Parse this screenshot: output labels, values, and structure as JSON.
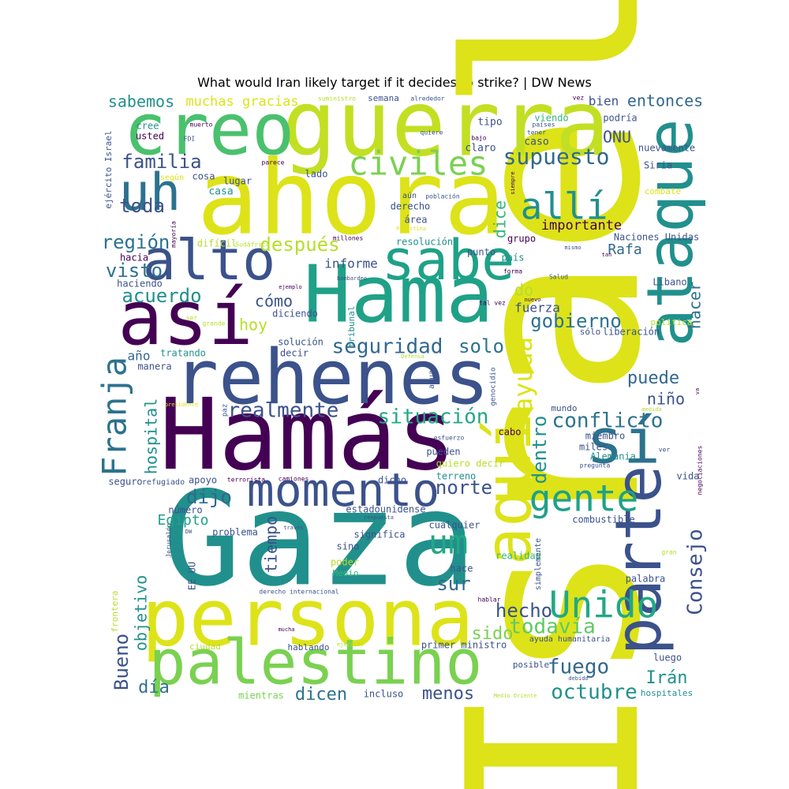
{
  "chart_data": {
    "type": "wordcloud",
    "title": "What would Iran likely target if it decides to strike? | DW News",
    "words": [
      {
        "text": "Israel",
        "weight": 100,
        "color": "#dde318",
        "vertical": true
      },
      {
        "text": "Gaza",
        "weight": 98,
        "color": "#21908d"
      },
      {
        "text": "Hamás",
        "weight": 80,
        "color": "#440154"
      },
      {
        "text": "ahora",
        "weight": 78,
        "color": "#dde318"
      },
      {
        "text": "guerra",
        "weight": 68,
        "color": "#c2df23"
      },
      {
        "text": "rehenes",
        "weight": 62,
        "color": "#3b528b"
      },
      {
        "text": "Hama",
        "weight": 60,
        "color": "#1fa188"
      },
      {
        "text": "persona",
        "weight": 58,
        "color": "#dde318"
      },
      {
        "text": "así",
        "weight": 55,
        "color": "#440154"
      },
      {
        "text": "creo",
        "weight": 52,
        "color": "#4ac16d"
      },
      {
        "text": "aquí",
        "weight": 50,
        "color": "#dde318",
        "vertical": true
      },
      {
        "text": "ataque",
        "weight": 50,
        "color": "#21908d",
        "vertical": true
      },
      {
        "text": "parte",
        "weight": 48,
        "color": "#3b528b",
        "vertical": true
      },
      {
        "text": "palestino",
        "weight": 46,
        "color": "#7ad151"
      },
      {
        "text": "sí",
        "weight": 45,
        "color": "#2c728e"
      },
      {
        "text": "alto",
        "weight": 44,
        "color": "#3b528b"
      },
      {
        "text": "sabe",
        "weight": 44,
        "color": "#1fa188"
      },
      {
        "text": "uh",
        "weight": 42,
        "color": "#2c728e"
      },
      {
        "text": "momento",
        "weight": 40,
        "color": "#3b528b"
      },
      {
        "text": "civiles",
        "weight": 34,
        "color": "#7ad151"
      },
      {
        "text": "gente",
        "weight": 32,
        "color": "#1fa188"
      },
      {
        "text": "Unido",
        "weight": 30,
        "color": "#22a884"
      },
      {
        "text": "allí",
        "weight": 30,
        "color": "#21908d"
      },
      {
        "text": "Franja",
        "weight": 28,
        "color": "#2c728e",
        "vertical": true
      },
      {
        "text": "um",
        "weight": 28,
        "color": "#22a884"
      },
      {
        "text": "supuesto",
        "weight": 22,
        "color": "#31688e"
      },
      {
        "text": "ayuda",
        "weight": 22,
        "color": "#dde318",
        "vertical": true
      },
      {
        "text": "seguridad",
        "weight": 20,
        "color": "#31688e"
      },
      {
        "text": "situación",
        "weight": 20,
        "color": "#22a884"
      },
      {
        "text": "conflicto",
        "weight": 20,
        "color": "#2c728e"
      },
      {
        "text": "realmente",
        "weight": 20,
        "color": "#3b528b"
      },
      {
        "text": "Consejo",
        "weight": 20,
        "color": "#3b528b",
        "vertical": true
      },
      {
        "text": "octubre",
        "weight": 20,
        "color": "#21908d"
      },
      {
        "text": "todavía",
        "weight": 20,
        "color": "#5ec962"
      },
      {
        "text": "fuego",
        "weight": 20,
        "color": "#31688e"
      },
      {
        "text": "hecho",
        "weight": 20,
        "color": "#3b528b"
      },
      {
        "text": "sur",
        "weight": 20,
        "color": "#31688e"
      },
      {
        "text": "norte",
        "weight": 20,
        "color": "#3b528b"
      },
      {
        "text": "dentro",
        "weight": 18,
        "color": "#21908d",
        "vertical": true
      },
      {
        "text": "familia",
        "weight": 18,
        "color": "#3b528b"
      },
      {
        "text": "toda",
        "weight": 18,
        "color": "#3b528b"
      },
      {
        "text": "región",
        "weight": 18,
        "color": "#2c728e"
      },
      {
        "text": "visto",
        "weight": 18,
        "color": "#2c728e"
      },
      {
        "text": "acuerdo",
        "weight": 18,
        "color": "#21908d"
      },
      {
        "text": "después",
        "weight": 18,
        "color": "#b5de2b"
      },
      {
        "text": "gobierno",
        "weight": 18,
        "color": "#2c728e"
      },
      {
        "text": "solo",
        "weight": 18,
        "color": "#2c728e"
      },
      {
        "text": "puede",
        "weight": 18,
        "color": "#31688e"
      },
      {
        "text": "dijo",
        "weight": 18,
        "color": "#31688e"
      },
      {
        "text": "Bueno",
        "weight": 18,
        "color": "#3b528b",
        "vertical": true
      },
      {
        "text": "día",
        "weight": 18,
        "color": "#2c728e"
      },
      {
        "text": "dicen",
        "weight": 16,
        "color": "#2c728e"
      },
      {
        "text": "menos",
        "weight": 16,
        "color": "#3b528b"
      },
      {
        "text": "Irán",
        "weight": 16,
        "color": "#21908d"
      },
      {
        "text": "sido",
        "weight": 16,
        "color": "#7ad151"
      },
      {
        "text": "hacer",
        "weight": 16,
        "color": "#2c728e",
        "vertical": true
      },
      {
        "text": "hospital",
        "weight": 16,
        "color": "#21908d",
        "vertical": true
      },
      {
        "text": "tiempo",
        "weight": 16,
        "color": "#3b528b",
        "vertical": true
      },
      {
        "text": "objetivo",
        "weight": 16,
        "color": "#21908d",
        "vertical": true
      },
      {
        "text": "ONU",
        "weight": 16,
        "color": "#3b528b"
      },
      {
        "text": "entonces",
        "weight": 16,
        "color": "#31688e"
      },
      {
        "text": "sabemos",
        "weight": 16,
        "color": "#21908d"
      },
      {
        "text": "muchas gracias",
        "weight": 14,
        "color": "#dde318"
      },
      {
        "text": "hoy",
        "weight": 16,
        "color": "#b5de2b"
      },
      {
        "text": "cómo",
        "weight": 16,
        "color": "#3b528b"
      },
      {
        "text": "importante",
        "weight": 14,
        "color": "#440154"
      },
      {
        "text": "dice",
        "weight": 16,
        "color": "#35b779",
        "vertical": true
      },
      {
        "text": "niño",
        "weight": 14,
        "color": "#3b528b"
      },
      {
        "text": "Rafa",
        "weight": 14,
        "color": "#31688e"
      },
      {
        "text": "do",
        "weight": 16,
        "color": "#b5de2b"
      },
      {
        "text": "fuerza",
        "weight": 13,
        "color": "#3b528b"
      },
      {
        "text": "informe",
        "weight": 13,
        "color": "#3b528b"
      },
      {
        "text": "Egipto",
        "weight": 14,
        "color": "#1fa188"
      },
      {
        "text": "año",
        "weight": 13,
        "color": "#31688e"
      },
      {
        "text": "bien",
        "weight": 13,
        "color": "#3b528b"
      },
      {
        "text": "tipo",
        "weight": 11,
        "color": "#3b528b"
      },
      {
        "text": "caso",
        "weight": 11,
        "color": "#3b528b"
      },
      {
        "text": "viendo",
        "weight": 10,
        "color": "#35b779"
      },
      {
        "text": "podría",
        "weight": 10,
        "color": "#3b528b"
      },
      {
        "text": "claro",
        "weight": 11,
        "color": "#3b528b"
      },
      {
        "text": "usted",
        "weight": 10,
        "color": "#440154"
      },
      {
        "text": "cree",
        "weight": 10,
        "color": "#21908d"
      },
      {
        "text": "casa",
        "weight": 11,
        "color": "#21908d"
      },
      {
        "text": "lugar",
        "weight": 10,
        "color": "#3b528b"
      },
      {
        "text": "cosa",
        "weight": 10,
        "color": "#3b528b"
      },
      {
        "text": "lado",
        "weight": 10,
        "color": "#3b528b"
      },
      {
        "text": "hacia",
        "weight": 10,
        "color": "#440154"
      },
      {
        "text": "difícil",
        "weight": 10,
        "color": "#b5de2b"
      },
      {
        "text": "haciendo",
        "weight": 10,
        "color": "#3b528b"
      },
      {
        "text": "diciendo",
        "weight": 10,
        "color": "#3b528b"
      },
      {
        "text": "solución",
        "weight": 10,
        "color": "#3b528b"
      },
      {
        "text": "decir",
        "weight": 10,
        "color": "#3b528b"
      },
      {
        "text": "tratando",
        "weight": 10,
        "color": "#21908d"
      },
      {
        "text": "manera",
        "weight": 10,
        "color": "#3b528b"
      },
      {
        "text": "resolución",
        "weight": 10,
        "color": "#21908d"
      },
      {
        "text": "punto",
        "weight": 10,
        "color": "#3b528b"
      },
      {
        "text": "grupo",
        "weight": 10,
        "color": "#440154"
      },
      {
        "text": "país",
        "weight": 10,
        "color": "#21908d"
      },
      {
        "text": "derecho",
        "weight": 10,
        "color": "#3b528b"
      },
      {
        "text": "área",
        "weight": 10,
        "color": "#3b528b"
      },
      {
        "text": "Naciones Unidas",
        "weight": 10,
        "color": "#3b528b"
      },
      {
        "text": "Siria",
        "weight": 10,
        "color": "#3b528b"
      },
      {
        "text": "nuevamente",
        "weight": 10,
        "color": "#3b528b"
      },
      {
        "text": "combate",
        "weight": 9,
        "color": "#dde318"
      },
      {
        "text": "Líbano",
        "weight": 10,
        "color": "#3b528b"
      },
      {
        "text": "política",
        "weight": 9,
        "color": "#b5de2b"
      },
      {
        "text": "liberación",
        "weight": 10,
        "color": "#3b528b"
      },
      {
        "text": "sólo",
        "weight": 9,
        "color": "#3b528b"
      },
      {
        "text": "mundo",
        "weight": 9,
        "color": "#3b528b"
      },
      {
        "text": "miembro",
        "weight": 10,
        "color": "#3b528b"
      },
      {
        "text": "miles",
        "weight": 10,
        "color": "#3b528b"
      },
      {
        "text": "Alemania",
        "weight": 10,
        "color": "#21908d"
      },
      {
        "text": "cabo",
        "weight": 10,
        "color": "#440154"
      },
      {
        "text": "pueden",
        "weight": 10,
        "color": "#3b528b"
      },
      {
        "text": "quiero decir",
        "weight": 10,
        "color": "#b5de2b"
      },
      {
        "text": "terreno",
        "weight": 10,
        "color": "#21908d"
      },
      {
        "text": "dicho",
        "weight": 10,
        "color": "#3b528b"
      },
      {
        "text": "estadounidense",
        "weight": 10,
        "color": "#3b528b"
      },
      {
        "text": "combustible",
        "weight": 10,
        "color": "#3b528b"
      },
      {
        "text": "cualquier",
        "weight": 10,
        "color": "#3b528b"
      },
      {
        "text": "significa",
        "weight": 10,
        "color": "#3b528b"
      },
      {
        "text": "sino",
        "weight": 10,
        "color": "#3b528b"
      },
      {
        "text": "poder",
        "weight": 10,
        "color": "#b5de2b"
      },
      {
        "text": "Medio",
        "weight": 9,
        "color": "#35b779"
      },
      {
        "text": "hace",
        "weight": 10,
        "color": "#3b528b"
      },
      {
        "text": "realidad",
        "weight": 10,
        "color": "#35b779"
      },
      {
        "text": "palabra",
        "weight": 10,
        "color": "#3b528b"
      },
      {
        "text": "vida",
        "weight": 10,
        "color": "#3b528b"
      },
      {
        "text": "luego",
        "weight": 10,
        "color": "#3b528b"
      },
      {
        "text": "hospitales",
        "weight": 9,
        "color": "#21908d"
      },
      {
        "text": "posible",
        "weight": 9,
        "color": "#3b528b"
      },
      {
        "text": "incluso",
        "weight": 10,
        "color": "#3b528b"
      },
      {
        "text": "mientras",
        "weight": 10,
        "color": "#7ad151"
      },
      {
        "text": "ciudad",
        "weight": 9,
        "color": "#b5de2b"
      },
      {
        "text": "hablando",
        "weight": 9,
        "color": "#3b528b"
      },
      {
        "text": "primer ministro",
        "weight": 10,
        "color": "#3b528b"
      },
      {
        "text": "ayuda humanitaria",
        "weight": 8,
        "color": "#3b528b"
      },
      {
        "text": "problema",
        "weight": 10,
        "color": "#3b528b"
      },
      {
        "text": "número",
        "weight": 10,
        "color": "#3b528b"
      },
      {
        "text": "seguro",
        "weight": 10,
        "color": "#3b528b"
      },
      {
        "text": "apoyo",
        "weight": 10,
        "color": "#3b528b"
      },
      {
        "text": "refugiado",
        "weight": 8,
        "color": "#3b528b"
      },
      {
        "text": "terrorista",
        "weight": 7,
        "color": "#440154"
      },
      {
        "text": "camiones",
        "weight": 7,
        "color": "#440154"
      },
      {
        "text": "ejército Israel",
        "weight": 9,
        "color": "#3b528b",
        "vertical": true
      },
      {
        "text": "mayoría",
        "weight": 7,
        "color": "#440154",
        "vertical": true
      },
      {
        "text": "tribunal",
        "weight": 9,
        "color": "#21908d",
        "vertical": true
      },
      {
        "text": "agua",
        "weight": 8,
        "color": "#3b528b",
        "vertical": true
      },
      {
        "text": "genocidio",
        "weight": 8,
        "color": "#3b528b",
        "vertical": true
      },
      {
        "text": "simplemente",
        "weight": 8,
        "color": "#3b528b",
        "vertical": true
      },
      {
        "text": "EE UU",
        "weight": 10,
        "color": "#3b528b",
        "vertical": true
      },
      {
        "text": "frontera",
        "weight": 9,
        "color": "#b5de2b",
        "vertical": true
      },
      {
        "text": "Jerusalén",
        "weight": 7,
        "color": "#3b528b",
        "vertical": true
      },
      {
        "text": "paz",
        "weight": 8,
        "color": "#3b528b",
        "vertical": true
      },
      {
        "text": "negociaciones",
        "weight": 7,
        "color": "#440154",
        "vertical": true
      },
      {
        "text": "siempre",
        "weight": 6,
        "color": "#440154",
        "vertical": true
      },
      {
        "text": "va",
        "weight": 6,
        "color": "#440154",
        "vertical": true
      },
      {
        "text": "suministro",
        "weight": 7,
        "color": "#b5de2b"
      },
      {
        "text": "semana",
        "weight": 9,
        "color": "#3b528b"
      },
      {
        "text": "alrededor",
        "weight": 7,
        "color": "#3b528b"
      },
      {
        "text": "vez",
        "weight": 7,
        "color": "#440154"
      },
      {
        "text": "países",
        "weight": 7,
        "color": "#3b528b"
      },
      {
        "text": "tener",
        "weight": 7,
        "color": "#3b528b"
      },
      {
        "text": "quiere",
        "weight": 7,
        "color": "#3b528b"
      },
      {
        "text": "bajo",
        "weight": 7,
        "color": "#440154"
      },
      {
        "text": "muerto",
        "weight": 7,
        "color": "#440154"
      },
      {
        "text": "FDI",
        "weight": 7,
        "color": "#3b528b"
      },
      {
        "text": "parece",
        "weight": 7,
        "color": "#440154"
      },
      {
        "text": "según",
        "weight": 8,
        "color": "#dde318"
      },
      {
        "text": "población",
        "weight": 7,
        "color": "#3b528b"
      },
      {
        "text": "aún",
        "weight": 8,
        "color": "#3b528b"
      },
      {
        "text": "Palestina",
        "weight": 6,
        "color": "#dde318"
      },
      {
        "text": "millones",
        "weight": 7,
        "color": "#440154"
      },
      {
        "text": "Sudáfrica",
        "weight": 7,
        "color": "#b5de2b"
      },
      {
        "text": "mismo",
        "weight": 6,
        "color": "#3b528b"
      },
      {
        "text": "tan",
        "weight": 6,
        "color": "#440154"
      },
      {
        "text": "forma",
        "weight": 7,
        "color": "#440154"
      },
      {
        "text": "Salud",
        "weight": 7,
        "color": "#3b528b"
      },
      {
        "text": "tal vez",
        "weight": 7,
        "color": "#440154"
      },
      {
        "text": "nuevo",
        "weight": 6,
        "color": "#440154"
      },
      {
        "text": "ejemplo",
        "weight": 6,
        "color": "#440154"
      },
      {
        "text": "bombardeo",
        "weight": 6,
        "color": "#3b528b"
      },
      {
        "text": "ser",
        "weight": 7,
        "color": "#b5de2b"
      },
      {
        "text": "grande",
        "weight": 7,
        "color": "#b5de2b"
      },
      {
        "text": "Defensa",
        "weight": 6,
        "color": "#b5de2b"
      },
      {
        "text": "presidente",
        "weight": 6,
        "color": "#dde318"
      },
      {
        "text": "esfuerzo",
        "weight": 7,
        "color": "#3b528b"
      },
      {
        "text": "pregunta",
        "weight": 7,
        "color": "#3b528b"
      },
      {
        "text": "medida",
        "weight": 6,
        "color": "#b5de2b"
      },
      {
        "text": "ver",
        "weight": 7,
        "color": "#3b528b"
      },
      {
        "text": "gran",
        "weight": 7,
        "color": "#b5de2b"
      },
      {
        "text": "respuesta",
        "weight": 6,
        "color": "#3b528b"
      },
      {
        "text": "través",
        "weight": 6,
        "color": "#3b528b"
      },
      {
        "text": "DW",
        "weight": 6,
        "color": "#3b528b"
      },
      {
        "text": "derecho internacional",
        "weight": 7,
        "color": "#3b528b"
      },
      {
        "text": "mucha",
        "weight": 6,
        "color": "#440154"
      },
      {
        "text": "ejército",
        "weight": 6,
        "color": "#b5de2b"
      },
      {
        "text": "hablar",
        "weight": 7,
        "color": "#440154"
      },
      {
        "text": "debido",
        "weight": 6,
        "color": "#3b528b"
      },
      {
        "text": "Medio Oriente",
        "weight": 6,
        "color": "#b5de2b"
      }
    ]
  }
}
